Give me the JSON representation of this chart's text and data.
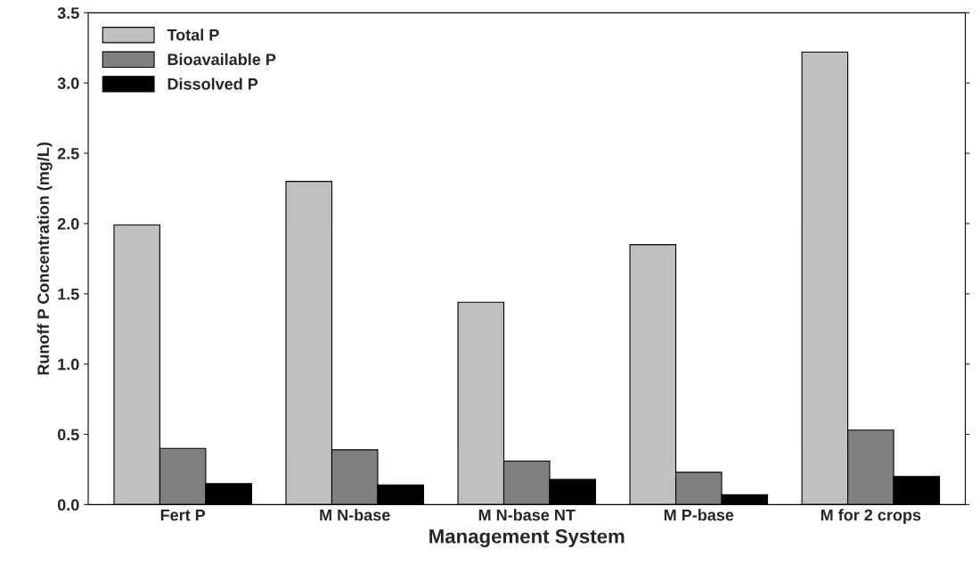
{
  "chart_data": {
    "type": "bar",
    "xlabel": "Management System",
    "ylabel": "Runoff P Concentration (mg/L)",
    "categories": [
      "Fert P",
      "M N-base",
      "M N-base NT",
      "M P-base",
      "M for 2 crops"
    ],
    "series": [
      {
        "name": "Total P",
        "color": "#c0c0c0",
        "values": [
          1.99,
          2.3,
          1.44,
          1.85,
          3.22
        ]
      },
      {
        "name": "Bioavailable P",
        "color": "#808080",
        "values": [
          0.4,
          0.39,
          0.31,
          0.23,
          0.53
        ]
      },
      {
        "name": "Dissolved P",
        "color": "#000000",
        "values": [
          0.15,
          0.14,
          0.18,
          0.07,
          0.2
        ]
      }
    ],
    "ylim": [
      0,
      3.5
    ],
    "yticks": [
      {
        "value": 0,
        "label": "0.0"
      },
      0.5,
      {
        "value": 1,
        "label": "1.0"
      },
      1.5,
      {
        "value": 2,
        "label": "2.0"
      },
      2.5,
      {
        "value": 3,
        "label": "3.0"
      },
      3.5
    ],
    "grid": false,
    "legend": "top left"
  }
}
